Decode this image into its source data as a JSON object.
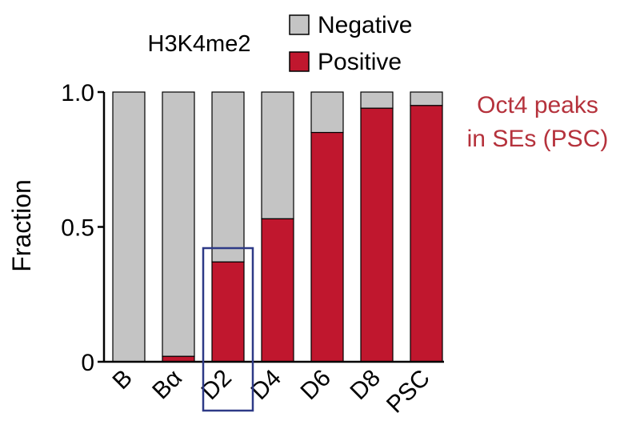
{
  "chart_data": {
    "type": "bar",
    "stacked": true,
    "title": "H3K4me2",
    "ylabel": "Fraction",
    "xlabel": "",
    "ylim": [
      0,
      1
    ],
    "yticks": [
      {
        "value": 0,
        "label": "0"
      },
      {
        "value": 0.5,
        "label": "0.5"
      },
      {
        "value": 1.0,
        "label": "1.0"
      }
    ],
    "categories": [
      "B",
      "Bα",
      "D2",
      "D4",
      "D6",
      "D8",
      "PSC"
    ],
    "series": [
      {
        "name": "Positive",
        "color": "#c0172e",
        "values": [
          0.0,
          0.02,
          0.37,
          0.53,
          0.85,
          0.94,
          0.95
        ]
      },
      {
        "name": "Negative",
        "color": "#c4c4c4",
        "values": [
          1.0,
          0.98,
          0.63,
          0.47,
          0.15,
          0.06,
          0.05
        ]
      }
    ],
    "legend": {
      "placement": "top",
      "order": [
        "Negative",
        "Positive"
      ]
    },
    "highlight": {
      "category": "D2",
      "color": "#2e3a87"
    },
    "annotation": {
      "lines": [
        "Oct4 peaks",
        "in SEs (PSC)"
      ],
      "color": "#b5323c"
    },
    "grid": false
  }
}
